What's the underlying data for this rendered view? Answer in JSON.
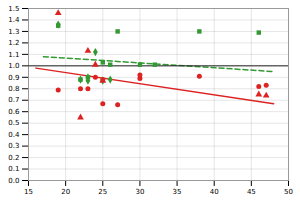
{
  "chart_data": {
    "type": "scatter",
    "xlim": [
      15,
      50
    ],
    "ylim": [
      0,
      1.5
    ],
    "xticks": [
      15,
      20,
      25,
      30,
      35,
      40,
      45,
      50
    ],
    "yticks": [
      {
        "value": 0,
        "label": "0.0"
      },
      0.1,
      0.2,
      0.3,
      0.4,
      0.5,
      0.6,
      0.7,
      0.8,
      0.9,
      {
        "value": 1,
        "label": "1.0"
      },
      1.1,
      1.2,
      1.3,
      1.4,
      1.5
    ],
    "grid": true,
    "series": [
      {
        "type": "scatter",
        "marker": "square",
        "color": "#339933",
        "x": [
          19,
          22,
          23,
          25,
          26,
          27,
          30,
          32,
          38,
          46
        ],
        "values": [
          1.35,
          0.88,
          0.9,
          1.03,
          1.01,
          1.3,
          1.01,
          1.01,
          1.3,
          1.29
        ]
      },
      {
        "type": "scatter",
        "marker": "circle",
        "color": "#dd2222",
        "x": [
          19,
          22,
          23,
          24,
          25,
          25,
          27,
          30,
          30,
          38,
          46,
          47
        ],
        "values": [
          0.79,
          0.8,
          0.8,
          0.9,
          0.88,
          0.67,
          0.66,
          0.89,
          0.92,
          0.91,
          0.82,
          0.83
        ]
      },
      {
        "type": "scatter",
        "marker": "diamond",
        "color": "#339933",
        "x": [
          19,
          22,
          23,
          23,
          24,
          25,
          26
        ],
        "values": [
          1.36,
          0.88,
          0.87,
          0.9,
          1.12,
          0.87,
          0.88
        ]
      },
      {
        "type": "scatter",
        "marker": "triangle",
        "color": "#dd2222",
        "x": [
          19,
          22,
          23,
          24,
          25,
          46,
          47
        ],
        "values": [
          1.46,
          0.55,
          1.13,
          1.01,
          0.87,
          0.75,
          0.74
        ]
      },
      {
        "type": "line",
        "line_style": "solid",
        "color": "#dd2222",
        "x": [
          16,
          48
        ],
        "values": [
          0.98,
          0.67
        ]
      },
      {
        "type": "line",
        "line_style": "dashed",
        "color": "#339933",
        "x": [
          17,
          48
        ],
        "values": [
          1.08,
          0.95
        ]
      },
      {
        "type": "hline",
        "color": "#222222",
        "values": [
          1.0
        ]
      }
    ]
  }
}
